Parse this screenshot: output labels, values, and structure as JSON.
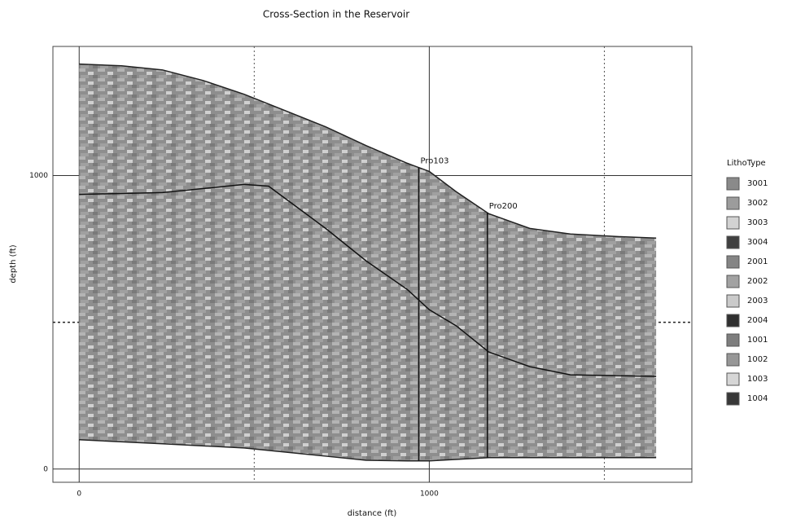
{
  "chart_data": {
    "type": "cross-section",
    "title": "Cross-Section in the Reservoir",
    "x_label": "distance (ft)",
    "y_label": "depth (ft)",
    "xlim": [
      -75,
      1750
    ],
    "ylim": [
      -45,
      1440
    ],
    "xticks": [
      0,
      1000
    ],
    "yticks": [
      0,
      1000
    ],
    "xgrid": [
      500,
      1500
    ],
    "ygrid": [
      500
    ],
    "surfaces": [
      {
        "color": "#222222",
        "x": [
          0,
          121,
          238,
          354,
          471,
          587,
          704,
          820,
          937,
          1000,
          1077,
          1170,
          1287,
          1403,
          1543,
          1648
        ],
        "values": [
          1380,
          1374,
          1360,
          1324,
          1277,
          1222,
          1166,
          1102,
          1042,
          1014,
          945,
          870,
          820,
          801,
          792,
          787
        ]
      },
      {
        "color": "#111111",
        "x": [
          0,
          238,
          471,
          541,
          704,
          820,
          937,
          1000,
          1077,
          1170,
          1287,
          1403,
          1648
        ],
        "values": [
          936,
          942,
          970,
          964,
          820,
          709,
          612,
          543,
          488,
          399,
          349,
          321,
          316
        ]
      },
      {
        "color": "#222222",
        "x": [
          0,
          238,
          471,
          587,
          704,
          820,
          937,
          1000,
          1170,
          1403,
          1648
        ],
        "values": [
          100,
          86,
          72,
          58,
          44,
          30,
          28,
          28,
          39,
          39,
          39
        ]
      }
    ],
    "wells": [
      {
        "name": "Pro103",
        "x": 970
      },
      {
        "name": "Pro200",
        "x": 1166
      }
    ],
    "legend_title": "LithoType",
    "legend": [
      {
        "name": "3001",
        "color": "#8a8a8a"
      },
      {
        "name": "3002",
        "color": "#9c9c9c"
      },
      {
        "name": "3003",
        "color": "#d2d2d2"
      },
      {
        "name": "3004",
        "color": "#404040"
      },
      {
        "name": "2001",
        "color": "#858585"
      },
      {
        "name": "2002",
        "color": "#a2a2a2"
      },
      {
        "name": "2003",
        "color": "#cacaca"
      },
      {
        "name": "2004",
        "color": "#303030"
      },
      {
        "name": "1001",
        "color": "#7e7e7e"
      },
      {
        "name": "1002",
        "color": "#979797"
      },
      {
        "name": "1003",
        "color": "#d6d6d6"
      },
      {
        "name": "1004",
        "color": "#383838"
      }
    ]
  }
}
